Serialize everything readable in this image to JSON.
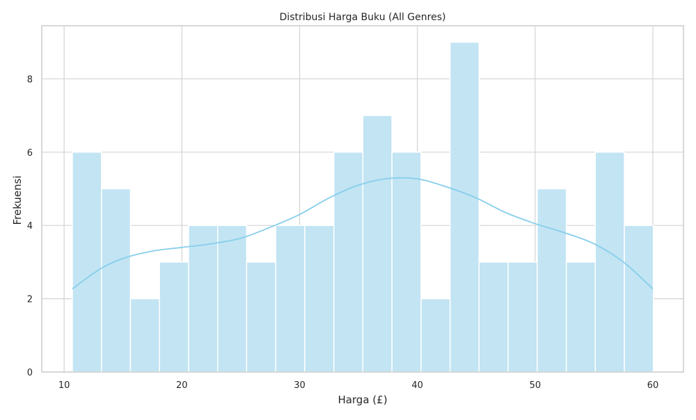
{
  "chart_data": {
    "type": "bar",
    "subtype": "histogram",
    "title": "Distribusi Harga Buku (All Genres)",
    "xlabel": "Harga (£)",
    "ylabel": "Frekuensi",
    "xlim": [
      8.1,
      62.6
    ],
    "ylim": [
      0,
      9.45
    ],
    "xticks": [
      10,
      20,
      30,
      40,
      50,
      60
    ],
    "yticks": [
      0,
      2,
      4,
      6,
      8
    ],
    "grid": true,
    "bins": [
      {
        "x0": 10.7,
        "x1": 13.17,
        "count": 6
      },
      {
        "x0": 13.17,
        "x1": 15.63,
        "count": 5
      },
      {
        "x0": 15.63,
        "x1": 18.1,
        "count": 2
      },
      {
        "x0": 18.1,
        "x1": 20.57,
        "count": 3
      },
      {
        "x0": 20.57,
        "x1": 23.04,
        "count": 4
      },
      {
        "x0": 23.04,
        "x1": 25.5,
        "count": 4
      },
      {
        "x0": 25.5,
        "x1": 27.97,
        "count": 3
      },
      {
        "x0": 27.97,
        "x1": 30.44,
        "count": 4
      },
      {
        "x0": 30.44,
        "x1": 32.91,
        "count": 4
      },
      {
        "x0": 32.91,
        "x1": 35.37,
        "count": 6
      },
      {
        "x0": 35.37,
        "x1": 37.84,
        "count": 7
      },
      {
        "x0": 37.84,
        "x1": 40.31,
        "count": 6
      },
      {
        "x0": 40.31,
        "x1": 42.78,
        "count": 2
      },
      {
        "x0": 42.78,
        "x1": 45.24,
        "count": 9
      },
      {
        "x0": 45.24,
        "x1": 47.71,
        "count": 3
      },
      {
        "x0": 47.71,
        "x1": 50.18,
        "count": 3
      },
      {
        "x0": 50.18,
        "x1": 52.65,
        "count": 5
      },
      {
        "x0": 52.65,
        "x1": 55.11,
        "count": 3
      },
      {
        "x0": 55.11,
        "x1": 57.58,
        "count": 6
      },
      {
        "x0": 57.58,
        "x1": 60.05,
        "count": 4
      }
    ],
    "kde": {
      "x": [
        10.7,
        13,
        15,
        17.5,
        20,
        22.5,
        25,
        27.5,
        30,
        32.5,
        35,
        37.5,
        40,
        42.5,
        45,
        47.5,
        50,
        52.5,
        55,
        57.5,
        60
      ],
      "y": [
        2.27,
        2.8,
        3.1,
        3.3,
        3.4,
        3.5,
        3.65,
        3.95,
        4.3,
        4.75,
        5.1,
        5.28,
        5.27,
        5.05,
        4.75,
        4.35,
        4.05,
        3.8,
        3.5,
        3.0,
        2.27
      ]
    },
    "colors": {
      "bar_fill": "#c2e4f3",
      "bar_edge": "#ffffff",
      "kde_line": "#87ceeb",
      "grid": "#d3d3d3",
      "frame": "#cccccc"
    }
  }
}
